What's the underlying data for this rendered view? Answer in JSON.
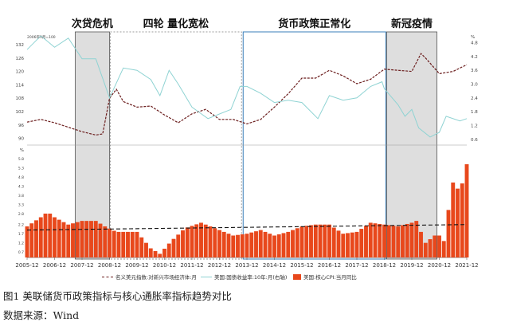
{
  "chart_data": [
    {
      "type": "line",
      "panel": "top",
      "left_axis_note": "2006年1月=100",
      "left_ticks": [
        90,
        96,
        102,
        108,
        114,
        120,
        126,
        132
      ],
      "right_axis_note": "%",
      "right_ticks": [
        0.6,
        1.2,
        1.8,
        2.4,
        3.0,
        3.6,
        4.2,
        4.8
      ],
      "ylim_left": [
        87,
        137
      ],
      "ylim_right": [
        0.35,
        5.2
      ],
      "periods": [
        {
          "label": "次贷危机",
          "start": "2007-09",
          "end": "2008-12",
          "style": "shaded"
        },
        {
          "label": "四轮  量化宽松",
          "start": "2008-12",
          "end": "2013-10",
          "style": "dashed-box"
        },
        {
          "label": "货币政策正常化",
          "start": "2013-10",
          "end": "2019-01",
          "style": "solid-box"
        },
        {
          "label": "新冠疫情",
          "start": "2019-01",
          "end": "2020-11",
          "style": "shaded"
        }
      ],
      "series": [
        {
          "name": "名义美元指数:对新兴市场经济体:月",
          "axis": "left",
          "style": "dashed",
          "color": "#6b1d1d",
          "points": [
            [
              "2005-12",
              97.3
            ],
            [
              "2006-06",
              98.5
            ],
            [
              "2006-12",
              97.0
            ],
            [
              "2007-06",
              95.0
            ],
            [
              "2007-12",
              93.0
            ],
            [
              "2008-06",
              91.5
            ],
            [
              "2008-09",
              92.0
            ],
            [
              "2008-12",
              108.0
            ],
            [
              "2009-03",
              112.0
            ],
            [
              "2009-06",
              106.5
            ],
            [
              "2009-12",
              104.0
            ],
            [
              "2010-06",
              104.5
            ],
            [
              "2010-12",
              100.5
            ],
            [
              "2011-06",
              97.0
            ],
            [
              "2011-12",
              101.0
            ],
            [
              "2012-06",
              103.0
            ],
            [
              "2012-12",
              98.5
            ],
            [
              "2013-06",
              98.5
            ],
            [
              "2013-12",
              96.5
            ],
            [
              "2014-06",
              98.5
            ],
            [
              "2014-12",
              104.0
            ],
            [
              "2015-06",
              110.0
            ],
            [
              "2015-12",
              117.0
            ],
            [
              "2016-06",
              117.0
            ],
            [
              "2016-12",
              120.5
            ],
            [
              "2017-06",
              118.0
            ],
            [
              "2017-12",
              114.5
            ],
            [
              "2018-06",
              116.5
            ],
            [
              "2018-12",
              121.0
            ],
            [
              "2019-06",
              120.5
            ],
            [
              "2019-12",
              120.0
            ],
            [
              "2020-04",
              128.0
            ],
            [
              "2020-06",
              126.0
            ],
            [
              "2020-12",
              119.0
            ],
            [
              "2021-06",
              120.0
            ],
            [
              "2021-12",
              123.0
            ]
          ]
        },
        {
          "name": "美国:国债收益率:10年:月(右轴)",
          "axis": "right",
          "style": "solid",
          "color": "#8fd3d3",
          "points": [
            [
              "2005-12",
              4.5
            ],
            [
              "2006-06",
              5.1
            ],
            [
              "2006-12",
              4.6
            ],
            [
              "2007-06",
              5.0
            ],
            [
              "2007-12",
              4.1
            ],
            [
              "2008-06",
              4.1
            ],
            [
              "2008-12",
              2.4
            ],
            [
              "2009-06",
              3.7
            ],
            [
              "2009-12",
              3.6
            ],
            [
              "2010-06",
              3.2
            ],
            [
              "2010-10",
              2.5
            ],
            [
              "2011-02",
              3.6
            ],
            [
              "2011-06",
              3.0
            ],
            [
              "2011-12",
              2.0
            ],
            [
              "2012-07",
              1.5
            ],
            [
              "2012-12",
              1.7
            ],
            [
              "2013-05",
              1.9
            ],
            [
              "2013-09",
              2.9
            ],
            [
              "2013-12",
              2.9
            ],
            [
              "2014-06",
              2.6
            ],
            [
              "2014-12",
              2.2
            ],
            [
              "2015-06",
              2.3
            ],
            [
              "2015-12",
              2.2
            ],
            [
              "2016-07",
              1.5
            ],
            [
              "2016-12",
              2.5
            ],
            [
              "2017-06",
              2.3
            ],
            [
              "2017-12",
              2.4
            ],
            [
              "2018-06",
              2.9
            ],
            [
              "2018-11",
              3.1
            ],
            [
              "2018-12",
              2.8
            ],
            [
              "2019-06",
              2.1
            ],
            [
              "2019-09",
              1.6
            ],
            [
              "2019-12",
              1.9
            ],
            [
              "2020-03",
              1.1
            ],
            [
              "2020-08",
              0.7
            ],
            [
              "2020-12",
              0.9
            ],
            [
              "2021-03",
              1.6
            ],
            [
              "2021-09",
              1.4
            ],
            [
              "2021-12",
              1.5
            ]
          ]
        }
      ]
    },
    {
      "type": "bar",
      "panel": "bottom",
      "unit": "%",
      "y_ticks": [
        0.7,
        1.2,
        1.7,
        2.2,
        2.8,
        3.3,
        3.8,
        4.3,
        4.8,
        5.3,
        5.8
      ],
      "ylim": [
        0.4,
        6.2
      ],
      "series": [
        {
          "name": "美国:核心CPI:当月同比",
          "color": "#e8481c",
          "anchors": [
            [
              "2005-12",
              2.1
            ],
            [
              "2006-06",
              2.6
            ],
            [
              "2006-09",
              2.9
            ],
            [
              "2006-12",
              2.6
            ],
            [
              "2007-06",
              2.2
            ],
            [
              "2007-12",
              2.4
            ],
            [
              "2008-06",
              2.4
            ],
            [
              "2008-10",
              2.1
            ],
            [
              "2009-03",
              1.8
            ],
            [
              "2009-12",
              1.8
            ],
            [
              "2010-06",
              0.9
            ],
            [
              "2010-10",
              0.6
            ],
            [
              "2011-03",
              1.3
            ],
            [
              "2011-09",
              2.0
            ],
            [
              "2012-04",
              2.3
            ],
            [
              "2012-12",
              1.9
            ],
            [
              "2013-06",
              1.6
            ],
            [
              "2013-12",
              1.7
            ],
            [
              "2014-06",
              1.9
            ],
            [
              "2014-12",
              1.6
            ],
            [
              "2015-06",
              1.8
            ],
            [
              "2015-12",
              2.1
            ],
            [
              "2016-06",
              2.2
            ],
            [
              "2016-12",
              2.2
            ],
            [
              "2017-06",
              1.7
            ],
            [
              "2017-12",
              1.8
            ],
            [
              "2018-06",
              2.3
            ],
            [
              "2018-12",
              2.2
            ],
            [
              "2019-06",
              2.1
            ],
            [
              "2019-12",
              2.3
            ],
            [
              "2020-02",
              2.4
            ],
            [
              "2020-06",
              1.2
            ],
            [
              "2020-10",
              1.6
            ],
            [
              "2020-12",
              1.6
            ],
            [
              "2021-02",
              1.3
            ],
            [
              "2021-04",
              3.0
            ],
            [
              "2021-06",
              4.5
            ],
            [
              "2021-09",
              4.0
            ],
            [
              "2021-11",
              4.9
            ],
            [
              "2021-12",
              5.5
            ]
          ]
        },
        {
          "name": "",
          "type": "trend",
          "style": "dashed",
          "color": "#111111",
          "points": [
            [
              "2005-12",
              1.9
            ],
            [
              "2021-12",
              2.2
            ]
          ]
        }
      ]
    }
  ],
  "x_tick_labels": [
    "2005-12",
    "2006-12",
    "2007-12",
    "2008-12",
    "2009-12",
    "2010-12",
    "2011-12",
    "2012-12",
    "2013-12",
    "2014-12",
    "2015-12",
    "2016-12",
    "2017-12",
    "2018-12",
    "2019-12",
    "2020-12",
    "2021-12"
  ],
  "legend": {
    "item1": "名义美元指数:对新兴市场经济体:月",
    "item2": "美国:国债收益率:10年:月(右轴)",
    "item3": "美国:核心CPI:当月同比"
  },
  "caption": {
    "title": "图1  美联储货币政策指标与核心通胀率指标趋势对比",
    "source": "数据来源：Wind"
  }
}
